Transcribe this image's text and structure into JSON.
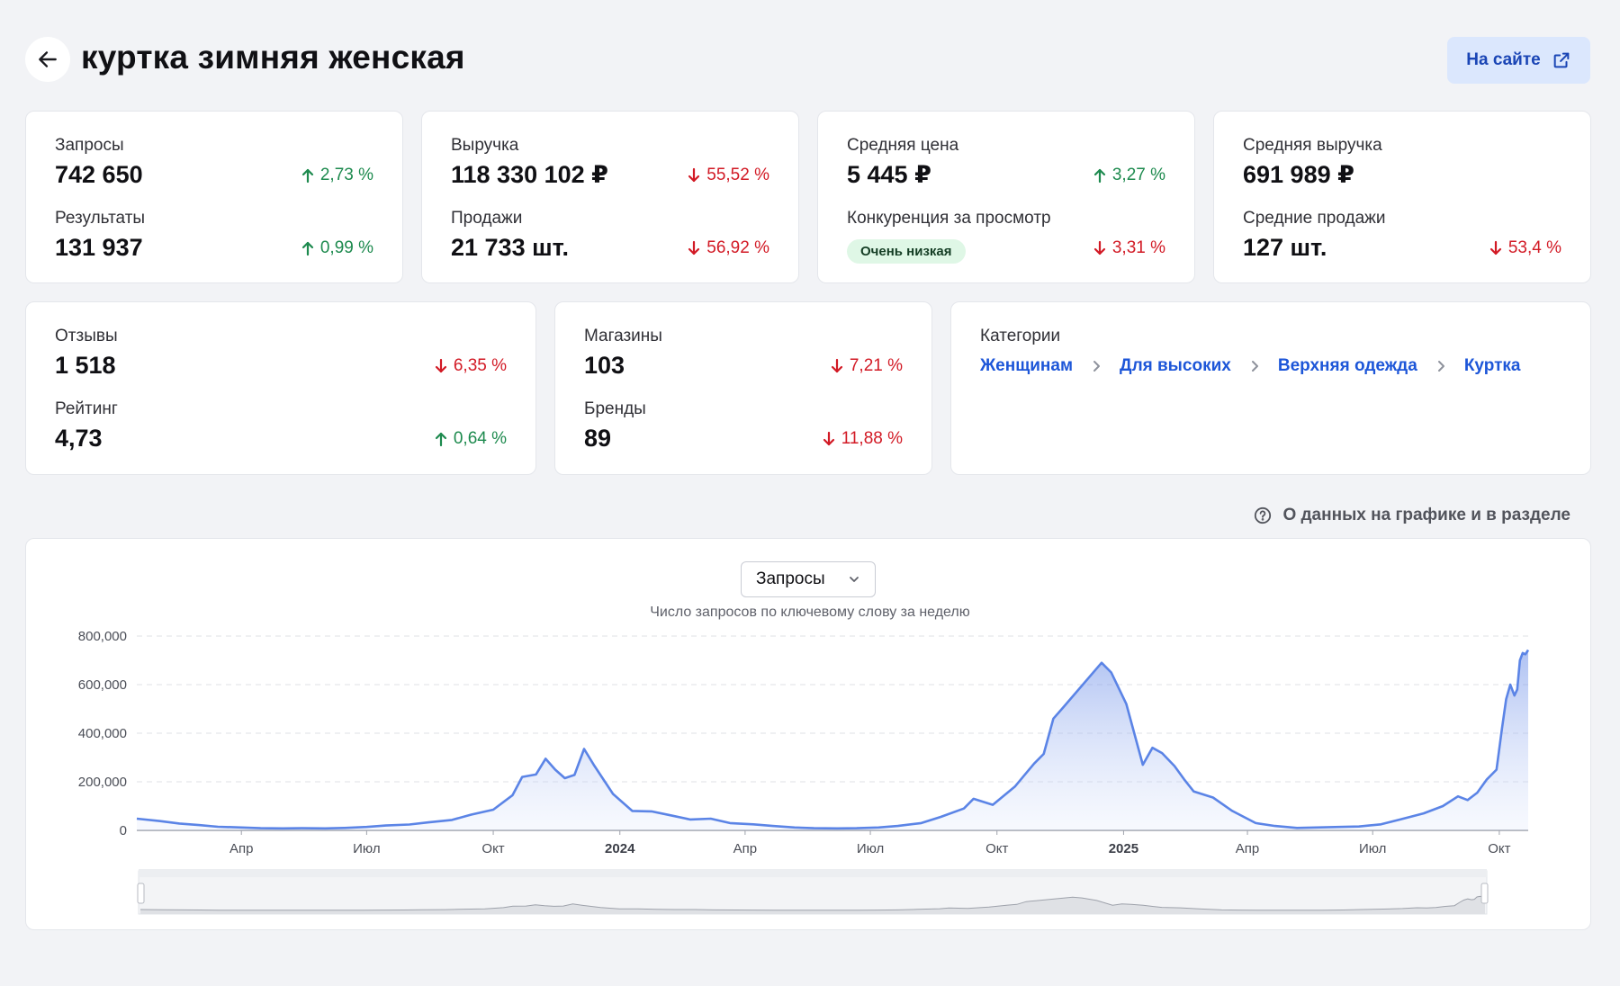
{
  "header": {
    "title": "куртка зимняя женская",
    "site_button": "На сайте"
  },
  "cards": [
    {
      "metrics": [
        {
          "label": "Запросы",
          "value": "742 650",
          "delta": "2,73 %",
          "trend": "up"
        },
        {
          "label": "Результаты",
          "value": "131 937",
          "delta": "0,99 %",
          "trend": "up"
        }
      ]
    },
    {
      "metrics": [
        {
          "label": "Выручка",
          "value": "118 330 102 ₽",
          "delta": "55,52 %",
          "trend": "down"
        },
        {
          "label": "Продажи",
          "value": "21 733 шт.",
          "delta": "56,92 %",
          "trend": "down"
        }
      ]
    },
    {
      "metrics": [
        {
          "label": "Средняя цена",
          "value": "5 445 ₽",
          "delta": "3,27 %",
          "trend": "up"
        },
        {
          "label": "Конкуренция за просмотр",
          "badge": "Очень низкая",
          "delta": "3,31 %",
          "trend": "down"
        }
      ]
    },
    {
      "metrics": [
        {
          "label": "Средняя выручка",
          "value": "691 989 ₽"
        },
        {
          "label": "Средние продажи",
          "value": "127 шт.",
          "delta": "53,4 %",
          "trend": "down"
        }
      ]
    },
    {
      "metrics": [
        {
          "label": "Отзывы",
          "value": "1 518",
          "delta": "6,35 %",
          "trend": "down"
        },
        {
          "label": "Рейтинг",
          "value": "4,73",
          "delta": "0,64 %",
          "trend": "up"
        }
      ]
    },
    {
      "metrics": [
        {
          "label": "Магазины",
          "value": "103",
          "delta": "7,21 %",
          "trend": "down"
        },
        {
          "label": "Бренды",
          "value": "89",
          "delta": "11,88 %",
          "trend": "down"
        }
      ]
    }
  ],
  "categories": {
    "label": "Категории",
    "path": [
      "Женщинам",
      "Для высоких",
      "Верхняя одежда",
      "Куртка"
    ]
  },
  "info_link": "О данных на графике и в разделе",
  "chart": {
    "selector": "Запросы",
    "subtitle": "Число запросов по ключевому слову за неделю"
  },
  "colors": {
    "up": "#1d8a4e",
    "down": "#d21a25",
    "accent": "#1d56d8",
    "line": "#5b84e6"
  },
  "chart_data": {
    "type": "area",
    "title": "",
    "subtitle": "Число запросов по ключевому слову за неделю",
    "xlabel": "",
    "ylabel": "",
    "ylim": [
      0,
      800000
    ],
    "y_ticks": [
      "0",
      "200,000",
      "400,000",
      "600,000",
      "800,000"
    ],
    "x_ticks": [
      {
        "date": "2023-04-01",
        "label": "Апр",
        "bold": false
      },
      {
        "date": "2023-07-01",
        "label": "Июл",
        "bold": false
      },
      {
        "date": "2023-10-01",
        "label": "Окт",
        "bold": false
      },
      {
        "date": "2024-01-01",
        "label": "2024",
        "bold": true
      },
      {
        "date": "2024-04-01",
        "label": "Апр",
        "bold": false
      },
      {
        "date": "2024-07-01",
        "label": "Июл",
        "bold": false
      },
      {
        "date": "2024-10-01",
        "label": "Окт",
        "bold": false
      },
      {
        "date": "2025-01-01",
        "label": "2025",
        "bold": true
      },
      {
        "date": "2025-04-01",
        "label": "Апр",
        "bold": false
      },
      {
        "date": "2025-07-01",
        "label": "Июл",
        "bold": false
      },
      {
        "date": "2025-10-01",
        "label": "Окт",
        "bold": false
      }
    ],
    "grid": true,
    "x_range": [
      "2023-01-15",
      "2025-10-22"
    ],
    "series": [
      {
        "values": [
          [
            "2023-01-15",
            48000
          ],
          [
            "2023-02-01",
            38000
          ],
          [
            "2023-02-15",
            28000
          ],
          [
            "2023-03-01",
            22000
          ],
          [
            "2023-03-15",
            15000
          ],
          [
            "2023-04-01",
            12000
          ],
          [
            "2023-04-15",
            9000
          ],
          [
            "2023-05-01",
            8000
          ],
          [
            "2023-05-15",
            9000
          ],
          [
            "2023-06-01",
            8000
          ],
          [
            "2023-06-15",
            10000
          ],
          [
            "2023-07-01",
            14000
          ],
          [
            "2023-07-15",
            20000
          ],
          [
            "2023-08-01",
            24000
          ],
          [
            "2023-08-15",
            33000
          ],
          [
            "2023-09-01",
            43000
          ],
          [
            "2023-09-15",
            65000
          ],
          [
            "2023-10-01",
            85000
          ],
          [
            "2023-10-15",
            145000
          ],
          [
            "2023-10-22",
            220000
          ],
          [
            "2023-11-01",
            230000
          ],
          [
            "2023-11-08",
            295000
          ],
          [
            "2023-11-15",
            250000
          ],
          [
            "2023-11-22",
            215000
          ],
          [
            "2023-11-29",
            228000
          ],
          [
            "2023-12-06",
            335000
          ],
          [
            "2023-12-13",
            270000
          ],
          [
            "2023-12-27",
            150000
          ],
          [
            "2024-01-10",
            80000
          ],
          [
            "2024-01-24",
            78000
          ],
          [
            "2024-02-07",
            62000
          ],
          [
            "2024-02-21",
            45000
          ],
          [
            "2024-03-07",
            48000
          ],
          [
            "2024-03-21",
            30000
          ],
          [
            "2024-04-07",
            25000
          ],
          [
            "2024-04-21",
            18000
          ],
          [
            "2024-05-07",
            12000
          ],
          [
            "2024-05-21",
            9000
          ],
          [
            "2024-06-07",
            8000
          ],
          [
            "2024-06-21",
            9000
          ],
          [
            "2024-07-07",
            12000
          ],
          [
            "2024-07-21",
            18000
          ],
          [
            "2024-08-07",
            30000
          ],
          [
            "2024-08-21",
            55000
          ],
          [
            "2024-09-07",
            90000
          ],
          [
            "2024-09-14",
            130000
          ],
          [
            "2024-09-28",
            105000
          ],
          [
            "2024-10-14",
            180000
          ],
          [
            "2024-10-28",
            275000
          ],
          [
            "2024-11-04",
            315000
          ],
          [
            "2024-11-11",
            460000
          ],
          [
            "2024-11-18",
            505000
          ],
          [
            "2024-12-16",
            690000
          ],
          [
            "2024-12-23",
            650000
          ],
          [
            "2025-01-03",
            520000
          ],
          [
            "2025-01-15",
            270000
          ],
          [
            "2025-01-22",
            340000
          ],
          [
            "2025-01-29",
            318000
          ],
          [
            "2025-02-07",
            265000
          ],
          [
            "2025-02-14",
            210000
          ],
          [
            "2025-02-21",
            160000
          ],
          [
            "2025-03-07",
            135000
          ],
          [
            "2025-03-21",
            80000
          ],
          [
            "2025-04-07",
            30000
          ],
          [
            "2025-04-21",
            18000
          ],
          [
            "2025-05-07",
            10000
          ],
          [
            "2025-05-21",
            12000
          ],
          [
            "2025-06-07",
            14000
          ],
          [
            "2025-06-21",
            16000
          ],
          [
            "2025-07-07",
            25000
          ],
          [
            "2025-07-21",
            45000
          ],
          [
            "2025-08-07",
            70000
          ],
          [
            "2025-08-21",
            100000
          ],
          [
            "2025-09-01",
            140000
          ],
          [
            "2025-09-08",
            125000
          ],
          [
            "2025-09-15",
            155000
          ],
          [
            "2025-09-22",
            210000
          ],
          [
            "2025-09-29",
            250000
          ],
          [
            "2025-10-03",
            420000
          ],
          [
            "2025-10-06",
            540000
          ],
          [
            "2025-10-09",
            600000
          ],
          [
            "2025-10-12",
            555000
          ],
          [
            "2025-10-14",
            580000
          ],
          [
            "2025-10-16",
            700000
          ],
          [
            "2025-10-18",
            730000
          ],
          [
            "2025-10-20",
            725000
          ],
          [
            "2025-10-22",
            742650
          ]
        ]
      }
    ]
  }
}
